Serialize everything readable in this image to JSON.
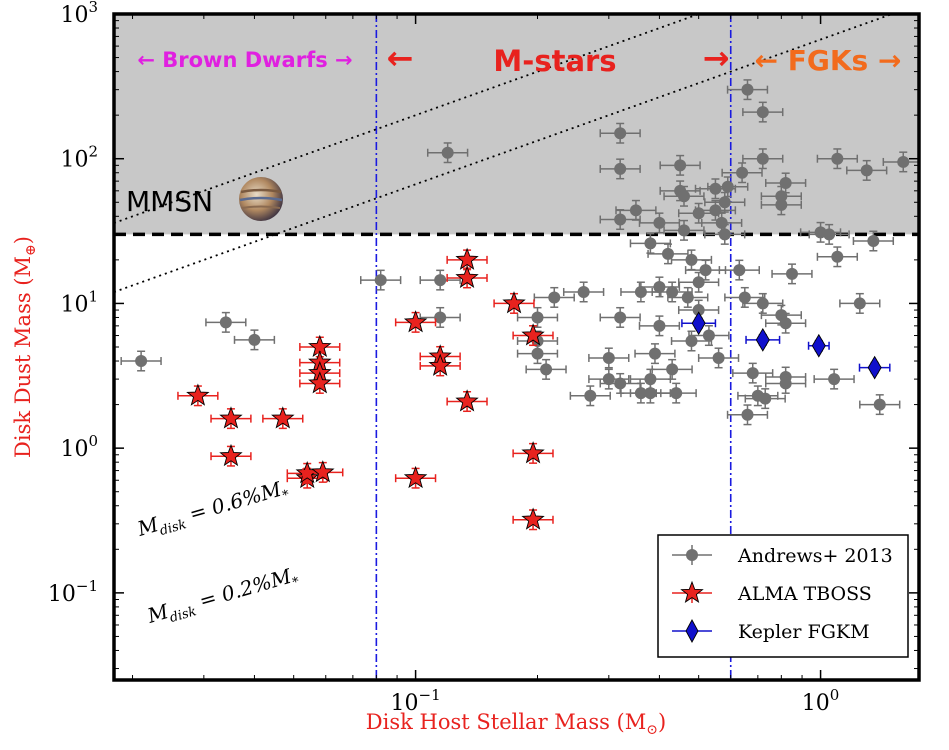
{
  "chart_data": {
    "type": "scatter",
    "xscale": "log",
    "yscale": "log",
    "xlim": [
      0.018,
      1.75
    ],
    "ylim": [
      0.025,
      1000
    ],
    "xlabel_main": "Disk Host Stellar Mass (M",
    "xlabel_sub": "⊙",
    "xlabel_close": ")",
    "ylabel_main": "Disk Dust Mass (M",
    "ylabel_sub": "⊕",
    "ylabel_close": ")",
    "xticks": [
      {
        "value": 0.1,
        "base": "10",
        "exp": "−1"
      },
      {
        "value": 1.0,
        "base": "10",
        "exp": "0"
      }
    ],
    "yticks": [
      {
        "value": 0.1,
        "base": "10",
        "exp": "−1"
      },
      {
        "value": 1.0,
        "base": "10",
        "exp": "0"
      },
      {
        "value": 10,
        "base": "10",
        "exp": "1"
      },
      {
        "value": 100,
        "base": "10",
        "exp": "2"
      },
      {
        "value": 1000,
        "base": "10",
        "exp": "3"
      }
    ],
    "mmsn_level": 30,
    "mmsn_label": "MMSN",
    "boundaries": [
      0.08,
      0.6
    ],
    "regions": [
      {
        "label": "Brown Dwarfs",
        "color": "#e020e0"
      },
      {
        "label": "M-stars",
        "color": "#e8221e"
      },
      {
        "label": "FGKs",
        "color": "#f26b1d"
      }
    ],
    "ratio_lines": [
      {
        "fraction": 0.006,
        "label": "M_disk = 0.6%M_*",
        "text_main": "M",
        "text_sub": "disk",
        "text_rest": " = 0.6%M",
        "text_star": "*"
      },
      {
        "fraction": 0.002,
        "label": "M_disk = 0.2%M_*",
        "text_main": "M",
        "text_sub": "disk",
        "text_rest": " = 0.2%M",
        "text_star": "*"
      }
    ],
    "legend": [
      {
        "label": "Andrews+ 2013",
        "marker": "circle",
        "color": "#707070"
      },
      {
        "label": "ALMA TBOSS",
        "marker": "star",
        "color": "#e8221e"
      },
      {
        "label": "Kepler FGKM",
        "marker": "diamond",
        "color": "#1010cc"
      }
    ],
    "legend_position": "lower right",
    "series": [
      {
        "name": "Andrews+ 2013",
        "marker": "circle",
        "color": "#707070",
        "points": [
          [
            0.021,
            4.0,
            0.12,
            0.12
          ],
          [
            0.034,
            7.4,
            0.12,
            0.12
          ],
          [
            0.04,
            5.6,
            0.12,
            0.12
          ],
          [
            0.082,
            14.5,
            0.12,
            0.12
          ],
          [
            0.115,
            14.5,
            0.12,
            0.12
          ],
          [
            0.115,
            8.0,
            0.12,
            0.12
          ],
          [
            0.12,
            110,
            0.12,
            0.12
          ],
          [
            0.2,
            8.0,
            0.12,
            0.12
          ],
          [
            0.2,
            5.5,
            0.12,
            0.12
          ],
          [
            0.2,
            4.5,
            0.12,
            0.12
          ],
          [
            0.21,
            3.5,
            0.12,
            0.12
          ],
          [
            0.22,
            11,
            0.12,
            0.12
          ],
          [
            0.26,
            12,
            0.12,
            0.12
          ],
          [
            0.27,
            2.3,
            0.12,
            0.12
          ],
          [
            0.3,
            4.2,
            0.12,
            0.12
          ],
          [
            0.3,
            3.0,
            0.12,
            0.12
          ],
          [
            0.32,
            2.8,
            0.12,
            0.12
          ],
          [
            0.32,
            8.0,
            0.12,
            0.12
          ],
          [
            0.32,
            150,
            0.12,
            0.12
          ],
          [
            0.32,
            85,
            0.12,
            0.12
          ],
          [
            0.32,
            38,
            0.12,
            0.12
          ],
          [
            0.35,
            44,
            0.12,
            0.12
          ],
          [
            0.36,
            12,
            0.12,
            0.12
          ],
          [
            0.36,
            2.4,
            0.12,
            0.12
          ],
          [
            0.38,
            2.4,
            0.12,
            0.12
          ],
          [
            0.38,
            3.0,
            0.12,
            0.12
          ],
          [
            0.38,
            26,
            0.12,
            0.12
          ],
          [
            0.39,
            4.5,
            0.12,
            0.12
          ],
          [
            0.4,
            13,
            0.12,
            0.12
          ],
          [
            0.4,
            7.0,
            0.12,
            0.12
          ],
          [
            0.4,
            36,
            0.12,
            0.12
          ],
          [
            0.42,
            22,
            0.12,
            0.12
          ],
          [
            0.43,
            12,
            0.12,
            0.12
          ],
          [
            0.43,
            3.5,
            0.12,
            0.12
          ],
          [
            0.44,
            2.4,
            0.12,
            0.12
          ],
          [
            0.45,
            90,
            0.12,
            0.12
          ],
          [
            0.45,
            60,
            0.12,
            0.12
          ],
          [
            0.46,
            55,
            0.12,
            0.12
          ],
          [
            0.46,
            32,
            0.12,
            0.12
          ],
          [
            0.47,
            11,
            0.12,
            0.12
          ],
          [
            0.48,
            20,
            0.12,
            0.12
          ],
          [
            0.48,
            5.5,
            0.12,
            0.12
          ],
          [
            0.5,
            42,
            0.12,
            0.12
          ],
          [
            0.5,
            14,
            0.12,
            0.12
          ],
          [
            0.5,
            9.0,
            0.12,
            0.12
          ],
          [
            0.52,
            17,
            0.12,
            0.12
          ],
          [
            0.53,
            6.0,
            0.12,
            0.12
          ],
          [
            0.55,
            62,
            0.12,
            0.12
          ],
          [
            0.55,
            44,
            0.12,
            0.12
          ],
          [
            0.56,
            4.2,
            0.12,
            0.12
          ],
          [
            0.57,
            36,
            0.12,
            0.12
          ],
          [
            0.58,
            50,
            0.12,
            0.12
          ],
          [
            0.58,
            30,
            0.12,
            0.12
          ],
          [
            0.59,
            64,
            0.12,
            0.12
          ],
          [
            0.66,
            300,
            0.12,
            0.12
          ],
          [
            0.64,
            80,
            0.12,
            0.12
          ],
          [
            0.63,
            17,
            0.12,
            0.12
          ],
          [
            0.65,
            11,
            0.12,
            0.12
          ],
          [
            0.68,
            3.3,
            0.12,
            0.12
          ],
          [
            0.66,
            1.7,
            0.12,
            0.12
          ],
          [
            0.7,
            2.3,
            0.12,
            0.12
          ],
          [
            0.72,
            210,
            0.12,
            0.12
          ],
          [
            0.72,
            100,
            0.12,
            0.12
          ],
          [
            0.72,
            10,
            0.12,
            0.12
          ],
          [
            0.73,
            2.2,
            0.12,
            0.12
          ],
          [
            0.8,
            55,
            0.12,
            0.12
          ],
          [
            0.8,
            48,
            0.12,
            0.12
          ],
          [
            0.82,
            68,
            0.12,
            0.12
          ],
          [
            0.8,
            8.3,
            0.12,
            0.12
          ],
          [
            0.82,
            7.3,
            0.12,
            0.12
          ],
          [
            0.82,
            3.1,
            0.12,
            0.12
          ],
          [
            0.82,
            2.8,
            0.12,
            0.12
          ],
          [
            0.85,
            16,
            0.12,
            0.12
          ],
          [
            1.05,
            30,
            0.12,
            0.12
          ],
          [
            1.1,
            100,
            0.12,
            0.12
          ],
          [
            1.1,
            21,
            0.12,
            0.12
          ],
          [
            1.08,
            3.0,
            0.12,
            0.12
          ],
          [
            1.3,
            83,
            0.12,
            0.12
          ],
          [
            1.35,
            27,
            0.12,
            0.12
          ],
          [
            1.25,
            10,
            0.12,
            0.12
          ],
          [
            1.4,
            2.0,
            0.12,
            0.12
          ],
          [
            1.6,
            95,
            0.12,
            0.12
          ],
          [
            1.0,
            31,
            0.12,
            0.12
          ]
        ]
      },
      {
        "name": "ALMA TBOSS",
        "marker": "star",
        "color": "#e8221e",
        "points": [
          [
            0.029,
            2.3,
            0.12,
            0.12
          ],
          [
            0.035,
            1.6,
            0.12,
            0.12
          ],
          [
            0.035,
            0.88,
            0.12,
            0.12
          ],
          [
            0.047,
            1.6,
            0.12,
            0.12
          ],
          [
            0.054,
            0.62,
            0.12,
            0.12
          ],
          [
            0.054,
            0.67,
            0.12,
            0.12
          ],
          [
            0.059,
            0.68,
            0.12,
            0.12
          ],
          [
            0.058,
            5.0,
            0.12,
            0.12
          ],
          [
            0.058,
            3.9,
            0.12,
            0.12
          ],
          [
            0.058,
            3.3,
            0.12,
            0.12
          ],
          [
            0.058,
            2.8,
            0.12,
            0.12
          ],
          [
            0.1,
            7.4,
            0.12,
            0.12
          ],
          [
            0.1,
            0.62,
            0.12,
            0.12
          ],
          [
            0.115,
            4.3,
            0.12,
            0.12
          ],
          [
            0.115,
            3.7,
            0.12,
            0.12
          ],
          [
            0.134,
            20,
            0.12,
            0.12
          ],
          [
            0.134,
            15,
            0.12,
            0.12
          ],
          [
            0.134,
            2.1,
            0.12,
            0.12
          ],
          [
            0.175,
            10.0,
            0.12,
            0.12
          ],
          [
            0.195,
            6.0,
            0.12,
            0.12
          ],
          [
            0.195,
            0.92,
            0.12,
            0.12
          ],
          [
            0.195,
            0.32,
            0.12,
            0.12
          ]
        ]
      },
      {
        "name": "Kepler FGKM",
        "marker": "diamond",
        "color": "#1010cc",
        "points": [
          [
            0.5,
            7.3,
            0.1,
            0.06
          ],
          [
            0.72,
            5.6,
            0.1,
            0.06
          ],
          [
            0.99,
            5.1,
            0.06,
            0.06
          ],
          [
            1.36,
            3.6,
            0.09,
            0.06
          ]
        ]
      }
    ]
  }
}
